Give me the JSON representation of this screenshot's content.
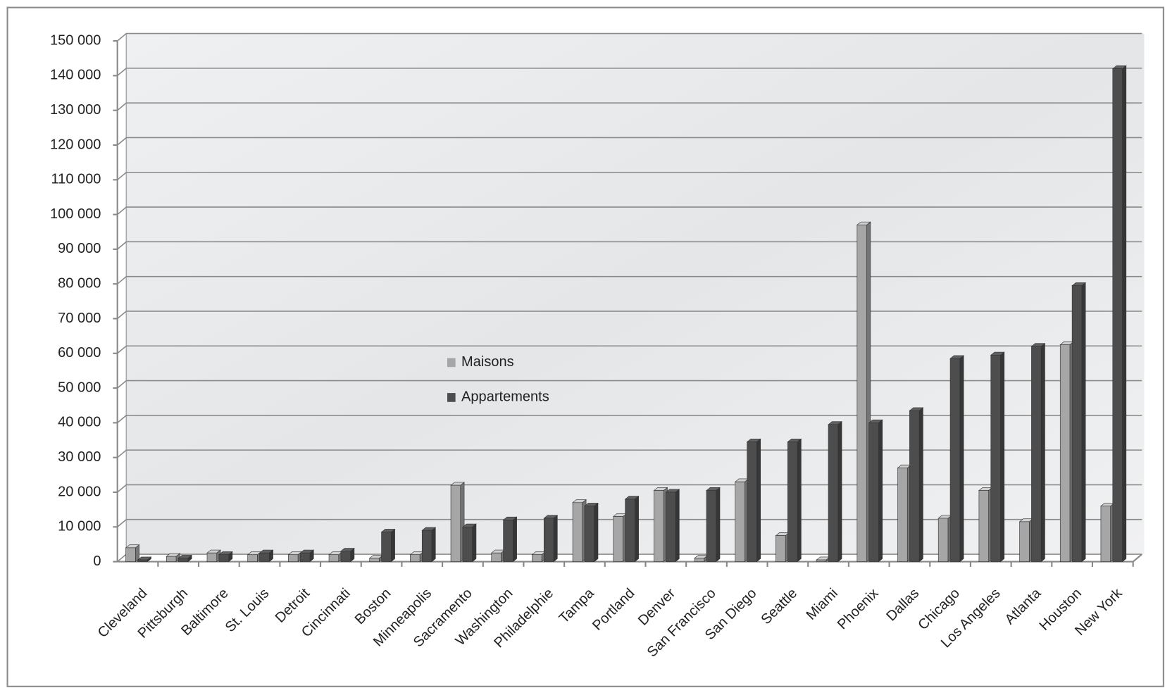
{
  "chart_data": {
    "type": "bar",
    "categories": [
      "Cleveland",
      "Pittsburgh",
      "Baltimore",
      "St. Louis",
      "Detroit",
      "Cincinnati",
      "Boston",
      "Minneapolis",
      "Sacramento",
      "Washington",
      "Philadelphie",
      "Tampa",
      "Portland",
      "Denver",
      "San Francisco",
      "San Diego",
      "Seattle",
      "Miami",
      "Phoenix",
      "Dallas",
      "Chicago",
      "Los Angeles",
      "Atlanta",
      "Houston",
      "New York"
    ],
    "series": [
      {
        "name": "Maisons",
        "color": "#a6a6a6",
        "values": [
          4000,
          1500,
          2500,
          2000,
          2000,
          2000,
          1000,
          2000,
          22000,
          2500,
          2000,
          17000,
          13000,
          20500,
          1000,
          23000,
          7500,
          500,
          97000,
          27000,
          12500,
          20500,
          11500,
          62500,
          16000
        ]
      },
      {
        "name": "Appartements",
        "color": "#4d4d4d",
        "values": [
          500,
          1000,
          2000,
          2500,
          2500,
          3000,
          8500,
          9000,
          10000,
          12000,
          12500,
          16000,
          18000,
          20000,
          20500,
          34500,
          34500,
          39500,
          40000,
          43500,
          58500,
          59500,
          62000,
          79500,
          142000
        ]
      }
    ],
    "ylim": [
      0,
      150000
    ],
    "yticks": [
      {
        "value": 0,
        "label": "0"
      },
      {
        "value": 10000,
        "label": "10 000"
      },
      {
        "value": 20000,
        "label": "20 000"
      },
      {
        "value": 30000,
        "label": "30 000"
      },
      {
        "value": 40000,
        "label": "40 000"
      },
      {
        "value": 50000,
        "label": "50 000"
      },
      {
        "value": 60000,
        "label": "60 000"
      },
      {
        "value": 70000,
        "label": "70 000"
      },
      {
        "value": 80000,
        "label": "80 000"
      },
      {
        "value": 90000,
        "label": "90 000"
      },
      {
        "value": 100000,
        "label": "100 000"
      },
      {
        "value": 110000,
        "label": "110 000"
      },
      {
        "value": 120000,
        "label": "120 000"
      },
      {
        "value": 130000,
        "label": "130 000"
      },
      {
        "value": 140000,
        "label": "140 000"
      },
      {
        "value": 150000,
        "label": "150 000"
      }
    ],
    "grid": true
  }
}
